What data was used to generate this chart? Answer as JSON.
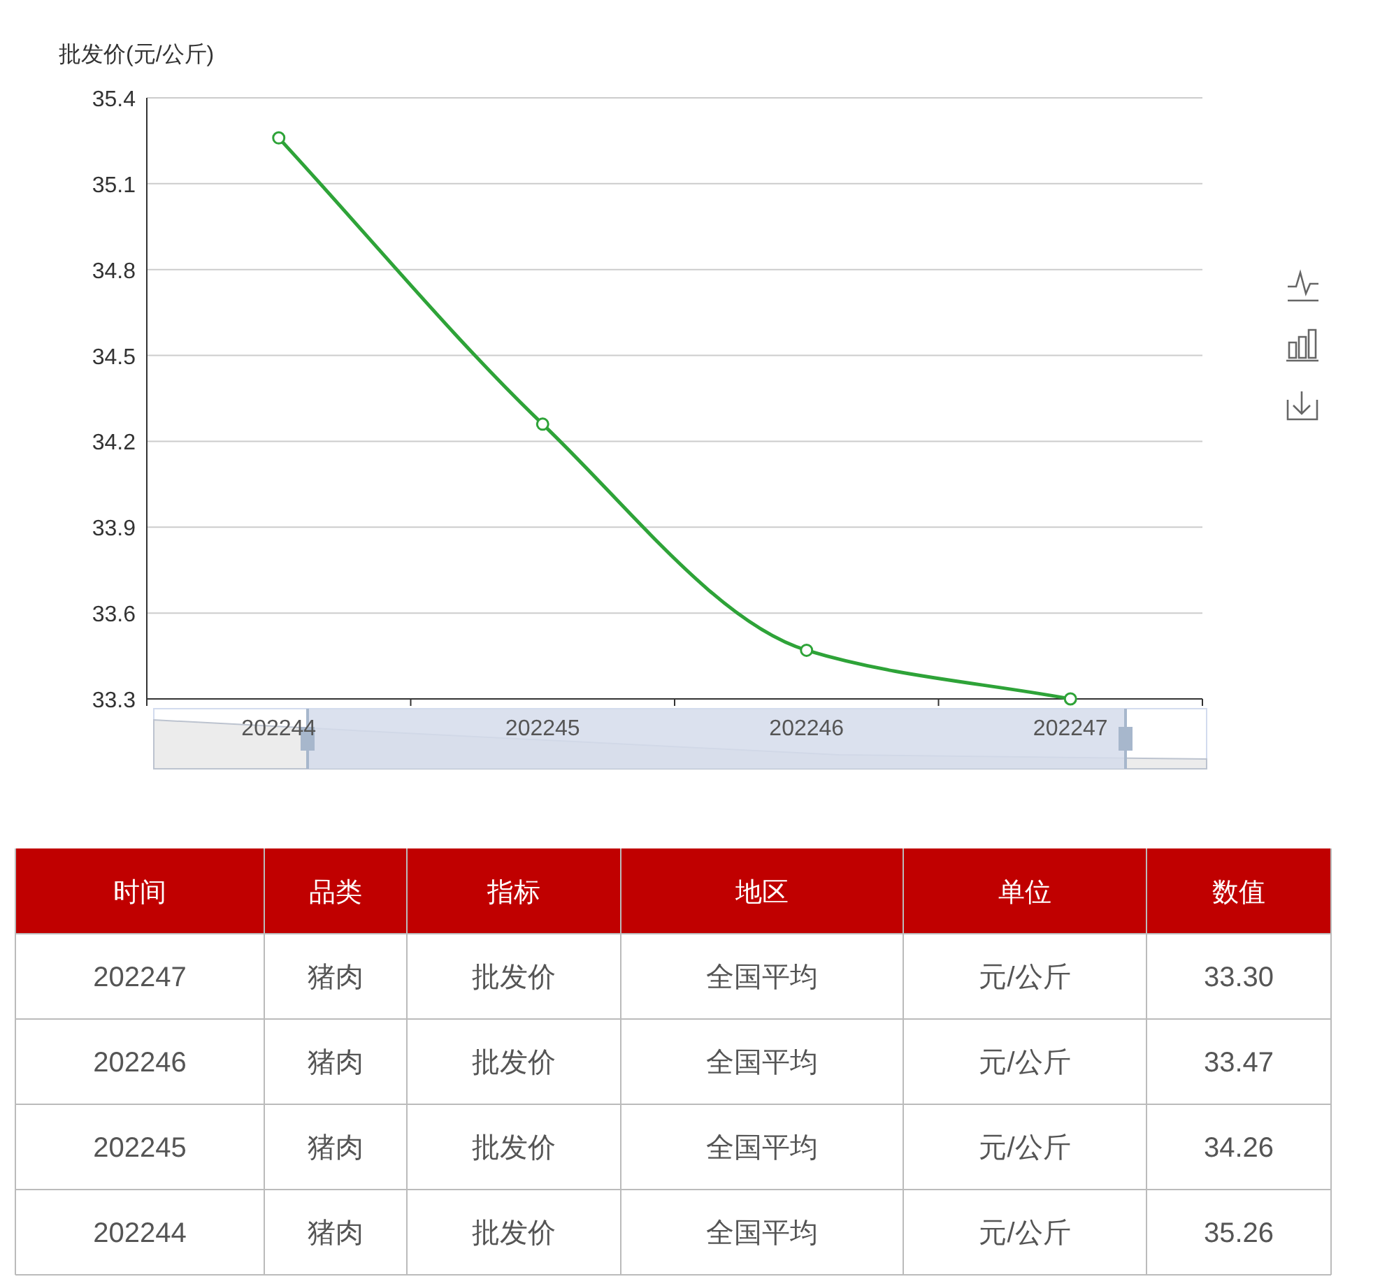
{
  "chart_data": {
    "type": "line",
    "ylabel": "批发价(元/公斤)",
    "categories": [
      "202244",
      "202245",
      "202246",
      "202247"
    ],
    "series": [
      {
        "color": "#2ea338",
        "values": [
          35.26,
          34.26,
          33.47,
          33.3
        ]
      }
    ],
    "value_labels": [
      "35.26",
      "34.26",
      "33.47",
      "33.30"
    ],
    "ylim": [
      33.3,
      35.4
    ],
    "yticks": [
      33.3,
      33.6,
      33.9,
      34.2,
      34.5,
      34.8,
      35.1,
      35.4
    ],
    "grid": "y",
    "marker": "circle",
    "line_style": "solid",
    "annotations": [
      "时间",
      "品类",
      "指标",
      "地区",
      "单位",
      "数值",
      "猪肉",
      "批发价",
      "全国平均",
      "元/公斤",
      "猪肉",
      "批发价",
      "全国平均",
      "元/公斤",
      "猪肉",
      "批发价",
      "全国平均",
      "元/公斤",
      "猪肉",
      "批发价",
      "全国平均",
      "元/公斤"
    ]
  }
}
